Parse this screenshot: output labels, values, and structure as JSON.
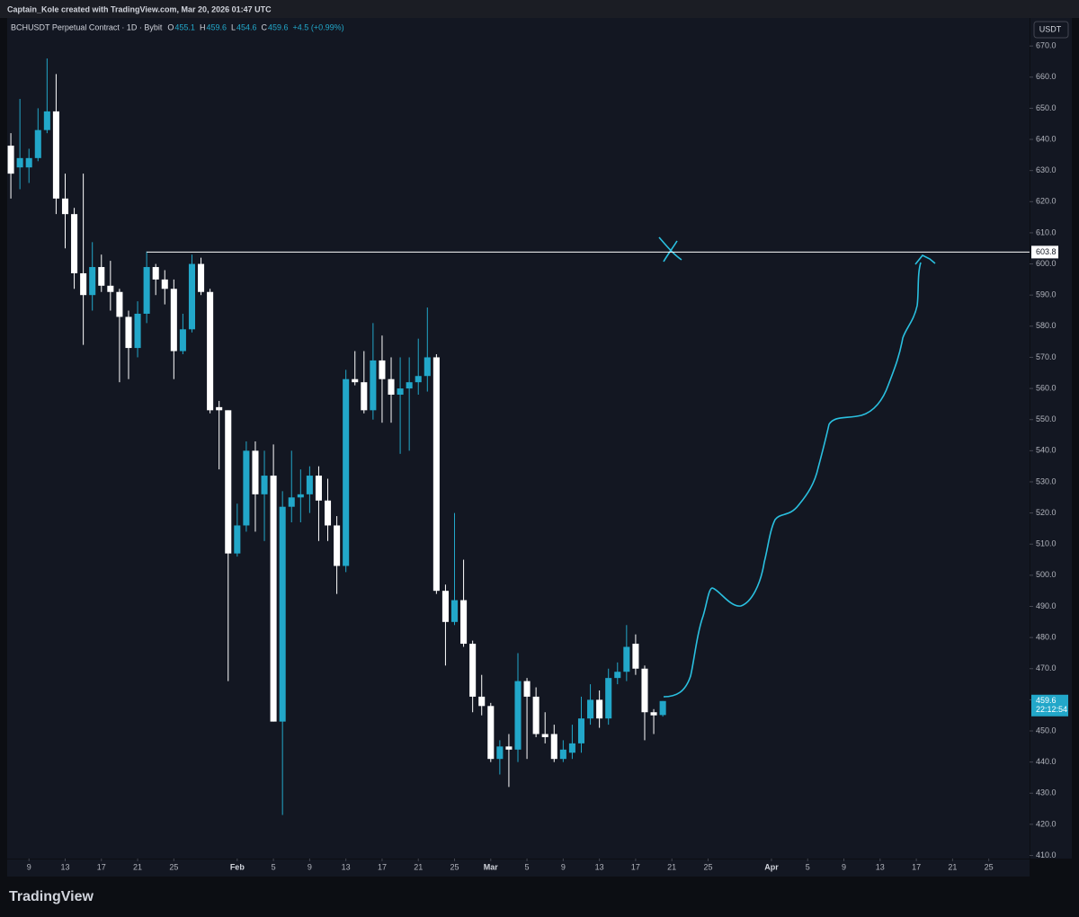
{
  "header": {
    "text": "Captain_Kole created with TradingView.com, Mar 20, 2026 01:47 UTC"
  },
  "legend": {
    "symbol": "BCHUSDT Perpetual Contract · 1D · Bybit",
    "open_label": "O",
    "high_label": "H",
    "low_label": "L",
    "close_label": "C",
    "change": "+4.5 (+0.99%)"
  },
  "footer": {
    "logo": "TradingView"
  },
  "chart_data": {
    "type": "candlestick",
    "x": [
      "2026-01-07",
      "2026-01-08",
      "2026-01-09",
      "2026-01-10",
      "2026-01-11",
      "2026-01-12",
      "2026-01-13",
      "2026-01-14",
      "2026-01-15",
      "2026-01-16",
      "2026-01-17",
      "2026-01-18",
      "2026-01-19",
      "2026-01-20",
      "2026-01-21",
      "2026-01-22",
      "2026-01-23",
      "2026-01-24",
      "2026-01-25",
      "2026-01-26",
      "2026-01-27",
      "2026-01-28",
      "2026-01-29",
      "2026-01-30",
      "2026-01-31",
      "2026-02-01",
      "2026-02-02",
      "2026-02-03",
      "2026-02-04",
      "2026-02-05",
      "2026-02-06",
      "2026-02-07",
      "2026-02-08",
      "2026-02-09",
      "2026-02-10",
      "2026-02-11",
      "2026-02-12",
      "2026-02-13",
      "2026-02-14",
      "2026-02-15",
      "2026-02-16",
      "2026-02-17",
      "2026-02-18",
      "2026-02-19",
      "2026-02-20",
      "2026-02-21",
      "2026-02-22",
      "2026-02-23",
      "2026-02-24",
      "2026-02-25",
      "2026-02-26",
      "2026-02-27",
      "2026-02-28",
      "2026-03-01",
      "2026-03-02",
      "2026-03-03",
      "2026-03-04",
      "2026-03-05",
      "2026-03-06",
      "2026-03-07",
      "2026-03-08",
      "2026-03-09",
      "2026-03-10",
      "2026-03-11",
      "2026-03-12",
      "2026-03-13",
      "2026-03-14",
      "2026-03-15",
      "2026-03-16",
      "2026-03-17",
      "2026-03-18",
      "2026-03-19",
      "2026-03-20"
    ],
    "open": [
      638,
      631,
      631,
      634,
      643,
      649,
      621,
      616,
      597,
      590,
      599,
      593,
      591,
      583,
      573,
      584,
      599,
      595,
      592,
      572,
      579,
      600,
      591,
      554,
      553,
      507,
      516,
      540,
      526,
      532,
      453,
      522,
      525,
      526,
      532,
      524,
      516,
      503,
      563,
      562,
      553,
      569,
      563,
      558,
      560,
      562,
      564,
      570,
      495,
      485,
      492,
      478,
      461,
      458,
      441,
      445,
      444,
      466,
      461,
      449,
      449,
      441,
      443,
      446,
      454,
      460,
      454,
      467,
      469,
      478,
      470,
      456,
      455.1
    ],
    "high": [
      642,
      653,
      637,
      650,
      666,
      661,
      629,
      618,
      629,
      607,
      603,
      601,
      592,
      585,
      588,
      604,
      600,
      598,
      595,
      584,
      603,
      602,
      592,
      556,
      553,
      523,
      543,
      543,
      540,
      542,
      527,
      540,
      534,
      535,
      535,
      531,
      519,
      566,
      572,
      572,
      581,
      577,
      570,
      570,
      570,
      576,
      586,
      571,
      497,
      520,
      505,
      479,
      468,
      459,
      447,
      449,
      475,
      467,
      464,
      456,
      452,
      447,
      452,
      461,
      465,
      463,
      470,
      472,
      484,
      481,
      471,
      457,
      459.6
    ],
    "low": [
      621,
      624,
      626,
      633,
      642,
      616,
      605,
      592,
      574,
      585,
      591,
      585,
      562,
      563,
      570,
      581,
      590,
      587,
      563,
      571,
      578,
      590,
      552,
      534,
      466,
      506,
      514,
      514,
      511,
      453,
      423,
      517,
      517,
      520,
      511,
      511,
      494,
      501,
      561,
      552,
      550,
      549,
      549,
      539,
      540,
      558,
      559,
      494,
      471,
      484,
      477,
      456,
      455,
      440,
      436,
      432,
      440,
      441,
      448,
      446,
      440,
      440,
      441,
      443,
      452,
      451,
      452,
      465,
      466,
      468,
      447,
      449,
      454.6
    ],
    "close": [
      629,
      634,
      634,
      643,
      649,
      621,
      616,
      597,
      590,
      599,
      593,
      591,
      583,
      573,
      584,
      599,
      595,
      592,
      572,
      579,
      600,
      591,
      553,
      553,
      507,
      516,
      540,
      526,
      532,
      453,
      522,
      525,
      526,
      532,
      524,
      516,
      503,
      563,
      562,
      553,
      569,
      563,
      558,
      560,
      562,
      564,
      570,
      495,
      485,
      492,
      478,
      461,
      458,
      441,
      445,
      444,
      466,
      461,
      449,
      448,
      441,
      444,
      446,
      454,
      460,
      454,
      467,
      469,
      477,
      470,
      456,
      455,
      459.6
    ],
    "up_color": "#22a7c9",
    "down_color": "#ffffff",
    "xlim": [
      "2026-01-06",
      "2026-04-30"
    ],
    "xticks": [
      {
        "value": "2026-01-09",
        "label": "9"
      },
      {
        "value": "2026-01-13",
        "label": "13"
      },
      {
        "value": "2026-01-17",
        "label": "17"
      },
      {
        "value": "2026-01-21",
        "label": "21"
      },
      {
        "value": "2026-01-25",
        "label": "25"
      },
      {
        "value": "2026-02-01",
        "label": "Feb"
      },
      {
        "value": "2026-02-05",
        "label": "5"
      },
      {
        "value": "2026-02-09",
        "label": "9"
      },
      {
        "value": "2026-02-13",
        "label": "13"
      },
      {
        "value": "2026-02-17",
        "label": "17"
      },
      {
        "value": "2026-02-21",
        "label": "21"
      },
      {
        "value": "2026-02-25",
        "label": "25"
      },
      {
        "value": "2026-03-01",
        "label": "Mar"
      },
      {
        "value": "2026-03-05",
        "label": "5"
      },
      {
        "value": "2026-03-09",
        "label": "9"
      },
      {
        "value": "2026-03-13",
        "label": "13"
      },
      {
        "value": "2026-03-17",
        "label": "17"
      },
      {
        "value": "2026-03-21",
        "label": "21"
      },
      {
        "value": "2026-03-25",
        "label": "25"
      },
      {
        "value": "2026-04-01",
        "label": "Apr"
      },
      {
        "value": "2026-04-05",
        "label": "5"
      },
      {
        "value": "2026-04-09",
        "label": "9"
      },
      {
        "value": "2026-04-13",
        "label": "13"
      },
      {
        "value": "2026-04-17",
        "label": "17"
      },
      {
        "value": "2026-04-21",
        "label": "21"
      },
      {
        "value": "2026-04-25",
        "label": "25"
      }
    ],
    "ylim": [
      409,
      679
    ],
    "yticks": [
      {
        "value": 410,
        "label": "410.0"
      },
      {
        "value": 420,
        "label": "420.0"
      },
      {
        "value": 430,
        "label": "430.0"
      },
      {
        "value": 440,
        "label": "440.0"
      },
      {
        "value": 450,
        "label": "450.0"
      },
      {
        "value": 460,
        "label": "460.0"
      },
      {
        "value": 470,
        "label": "470.0"
      },
      {
        "value": 480,
        "label": "480.0"
      },
      {
        "value": 490,
        "label": "490.0"
      },
      {
        "value": 500,
        "label": "500.0"
      },
      {
        "value": 510,
        "label": "510.0"
      },
      {
        "value": 520,
        "label": "520.0"
      },
      {
        "value": 530,
        "label": "530.0"
      },
      {
        "value": 540,
        "label": "540.0"
      },
      {
        "value": 550,
        "label": "550.0"
      },
      {
        "value": 560,
        "label": "560.0"
      },
      {
        "value": 570,
        "label": "570.0"
      },
      {
        "value": 580,
        "label": "580.0"
      },
      {
        "value": 590,
        "label": "590.0"
      },
      {
        "value": 600,
        "label": "600.0"
      },
      {
        "value": 610,
        "label": "610.0"
      },
      {
        "value": 620,
        "label": "620.0"
      },
      {
        "value": 630,
        "label": "630.0"
      },
      {
        "value": 640,
        "label": "640.0"
      },
      {
        "value": 650,
        "label": "650.0"
      },
      {
        "value": 660,
        "label": "660.0"
      },
      {
        "value": 670,
        "label": "670.0"
      }
    ],
    "y_unit": "USDT",
    "hline": {
      "value": 603.8,
      "color": "#ffffff"
    },
    "countdown": "22:12:54"
  }
}
